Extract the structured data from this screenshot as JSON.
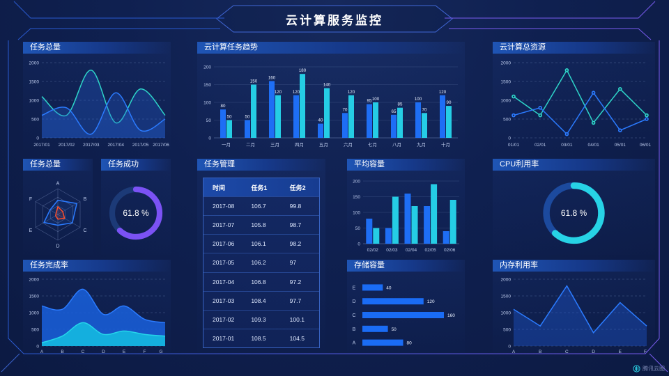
{
  "page": {
    "title": "云计算服务监控",
    "watermark": "腾讯云图"
  },
  "colors": {
    "accent_blue": "#2b7bff",
    "bar_blue": "#1e6ef5",
    "cyan": "#25cde5",
    "teal": "#2ed5c9",
    "purple": "#7b52f4",
    "red": "#ff4f2b",
    "frame_blue": "#2a5ad0",
    "frame_purple": "#7a5cf0",
    "title_bar": "#1f55b5"
  },
  "panels": {
    "tasks_total": {
      "title": "任务总量"
    },
    "task_trend": {
      "title": "云计算任务趋势"
    },
    "total_resources": {
      "title": "云计算总资源"
    },
    "radar": {
      "title": "任务总量"
    },
    "task_success": {
      "title": "任务成功"
    },
    "task_table": {
      "title": "任务管理"
    },
    "avg_capacity": {
      "title": "平均容量"
    },
    "cpu": {
      "title": "CPU利用率"
    },
    "completion": {
      "title": "任务完成率"
    },
    "storage": {
      "title": "存储容量"
    },
    "memory": {
      "title": "内存利用率"
    }
  },
  "chart_data": [
    {
      "panel": "tasks_total",
      "type": "area",
      "title": "任务总量",
      "smooth": true,
      "dashed_grid": true,
      "grid": "on",
      "legend": "none",
      "x": [
        "2017/01",
        "2017/02",
        "2017/03",
        "2017/04",
        "2017/05",
        "2017/06"
      ],
      "ylim": [
        0,
        2000
      ],
      "yticks": [
        0,
        500,
        1000,
        1500,
        2000
      ],
      "series": [
        {
          "color": "#2ed5c9",
          "fill": "rgba(36,96,212,0.30)",
          "values": [
            1100,
            600,
            1800,
            400,
            1300,
            600
          ]
        },
        {
          "color": "#2b7bff",
          "fill": "rgba(36,96,212,0.30)",
          "values": [
            600,
            800,
            100,
            1200,
            200,
            500
          ]
        }
      ]
    },
    {
      "panel": "task_trend",
      "type": "bar",
      "title": "云计算任务趋势",
      "value_labels": true,
      "grid": "on",
      "legend": "none",
      "categories": [
        "一月",
        "二月",
        "三月",
        "四月",
        "五月",
        "六月",
        "七月",
        "八月",
        "九月",
        "十月"
      ],
      "ylim": [
        0,
        200
      ],
      "yticks": [
        0,
        50,
        100,
        150,
        200
      ],
      "series": [
        {
          "color": "#1e6ef5",
          "values": [
            80,
            50,
            160,
            120,
            40,
            70,
            95,
            65,
            100,
            120
          ]
        },
        {
          "color": "#25cde5",
          "values": [
            50,
            150,
            120,
            180,
            140,
            120,
            100,
            85,
            70,
            90
          ]
        }
      ]
    },
    {
      "panel": "total_resources",
      "type": "line",
      "title": "云计算总资源",
      "markers": true,
      "dashed_grid": true,
      "grid": "on",
      "legend": "none",
      "x": [
        "01/01",
        "02/01",
        "03/01",
        "04/01",
        "05/01",
        "06/01"
      ],
      "ylim": [
        0,
        2000
      ],
      "yticks": [
        0,
        500,
        1000,
        1500,
        2000
      ],
      "series": [
        {
          "color": "#2ed5c9",
          "values": [
            1100,
            600,
            1800,
            400,
            1300,
            600
          ]
        },
        {
          "color": "#2b7bff",
          "values": [
            600,
            800,
            100,
            1200,
            200,
            500
          ]
        }
      ]
    },
    {
      "panel": "radar",
      "type": "radar",
      "title": "任务总量",
      "axes": [
        "A",
        "B",
        "C",
        "D",
        "E",
        "F"
      ],
      "max": 100,
      "series": [
        {
          "color": "#2b7bff",
          "fill": "rgba(43,123,255,0.10)",
          "values": [
            55,
            85,
            65,
            42,
            62,
            35
          ]
        },
        {
          "color": "#ff4f2b",
          "fill": "rgba(255,79,43,0.12)",
          "values": [
            30,
            22,
            30,
            18,
            10,
            8
          ]
        }
      ]
    },
    {
      "panel": "task_success",
      "type": "donut",
      "title": "任务成功",
      "value": 61.8,
      "label": "61.8 %",
      "color": "#7b52f4",
      "track": "#1c3a77"
    },
    {
      "panel": "task_table",
      "type": "table",
      "title": "任务管理",
      "headers": [
        "时间",
        "任务1",
        "任务2"
      ],
      "rows": [
        [
          "2017-08",
          "106.7",
          "99.8"
        ],
        [
          "2017-07",
          "105.8",
          "98.7"
        ],
        [
          "2017-06",
          "106.1",
          "98.2"
        ],
        [
          "2017-05",
          "106.2",
          "97"
        ],
        [
          "2017-04",
          "106.8",
          "97.2"
        ],
        [
          "2017-03",
          "108.4",
          "97.7"
        ],
        [
          "2017-02",
          "109.3",
          "100.1"
        ],
        [
          "2017-01",
          "108.5",
          "104.5"
        ]
      ]
    },
    {
      "panel": "avg_capacity",
      "type": "bar",
      "title": "平均容量",
      "value_labels": false,
      "grid": "on",
      "legend": "none",
      "categories": [
        "02/02",
        "02/03",
        "02/04",
        "02/05",
        "02/06"
      ],
      "ylim": [
        0,
        200
      ],
      "yticks": [
        0,
        50,
        100,
        150,
        200
      ],
      "series": [
        {
          "color": "#1e6ef5",
          "values": [
            80,
            50,
            160,
            120,
            40
          ]
        },
        {
          "color": "#25cde5",
          "values": [
            50,
            150,
            120,
            190,
            140
          ]
        }
      ]
    },
    {
      "panel": "cpu",
      "type": "donut",
      "title": "CPU利用率",
      "value": 61.8,
      "label": "61.8 %",
      "color": "#27d3e6",
      "track": "#1c4a9e"
    },
    {
      "panel": "completion",
      "type": "area",
      "title": "任务完成率",
      "smooth": true,
      "dashed_grid": true,
      "grid": "on",
      "legend": "none",
      "x": [
        "A",
        "B",
        "C",
        "D",
        "E",
        "F",
        "G"
      ],
      "ylim": [
        0,
        2000
      ],
      "yticks": [
        0,
        500,
        1000,
        1500,
        2000
      ],
      "series": [
        {
          "color": "#2b7bff",
          "fill": "rgba(25,95,216,0.88)",
          "values": [
            1200,
            1100,
            1700,
            950,
            1200,
            800,
            700
          ]
        },
        {
          "color": "#25d5ea",
          "fill": "rgba(21,182,224,0.92)",
          "values": [
            100,
            300,
            700,
            350,
            450,
            350,
            300
          ]
        }
      ]
    },
    {
      "panel": "storage",
      "type": "hbar",
      "title": "存储容量",
      "categories": [
        "E",
        "D",
        "C",
        "B",
        "A"
      ],
      "values": [
        40,
        120,
        160,
        50,
        80
      ],
      "max": 160,
      "color": "#1a6cf5",
      "value_labels": true
    },
    {
      "panel": "memory",
      "type": "line",
      "title": "内存利用率",
      "smooth": false,
      "markers": false,
      "dashed_grid": true,
      "grid": "on",
      "legend": "none",
      "x": [
        "A",
        "B",
        "C",
        "D",
        "E",
        "F"
      ],
      "ylim": [
        0,
        2000
      ],
      "yticks": [
        0,
        500,
        1000,
        1500,
        2000
      ],
      "series": [
        {
          "color": "#2b7bff",
          "fill": "rgba(30,88,210,0.40)",
          "values": [
            1100,
            600,
            1800,
            400,
            1300,
            600
          ]
        }
      ]
    }
  ]
}
